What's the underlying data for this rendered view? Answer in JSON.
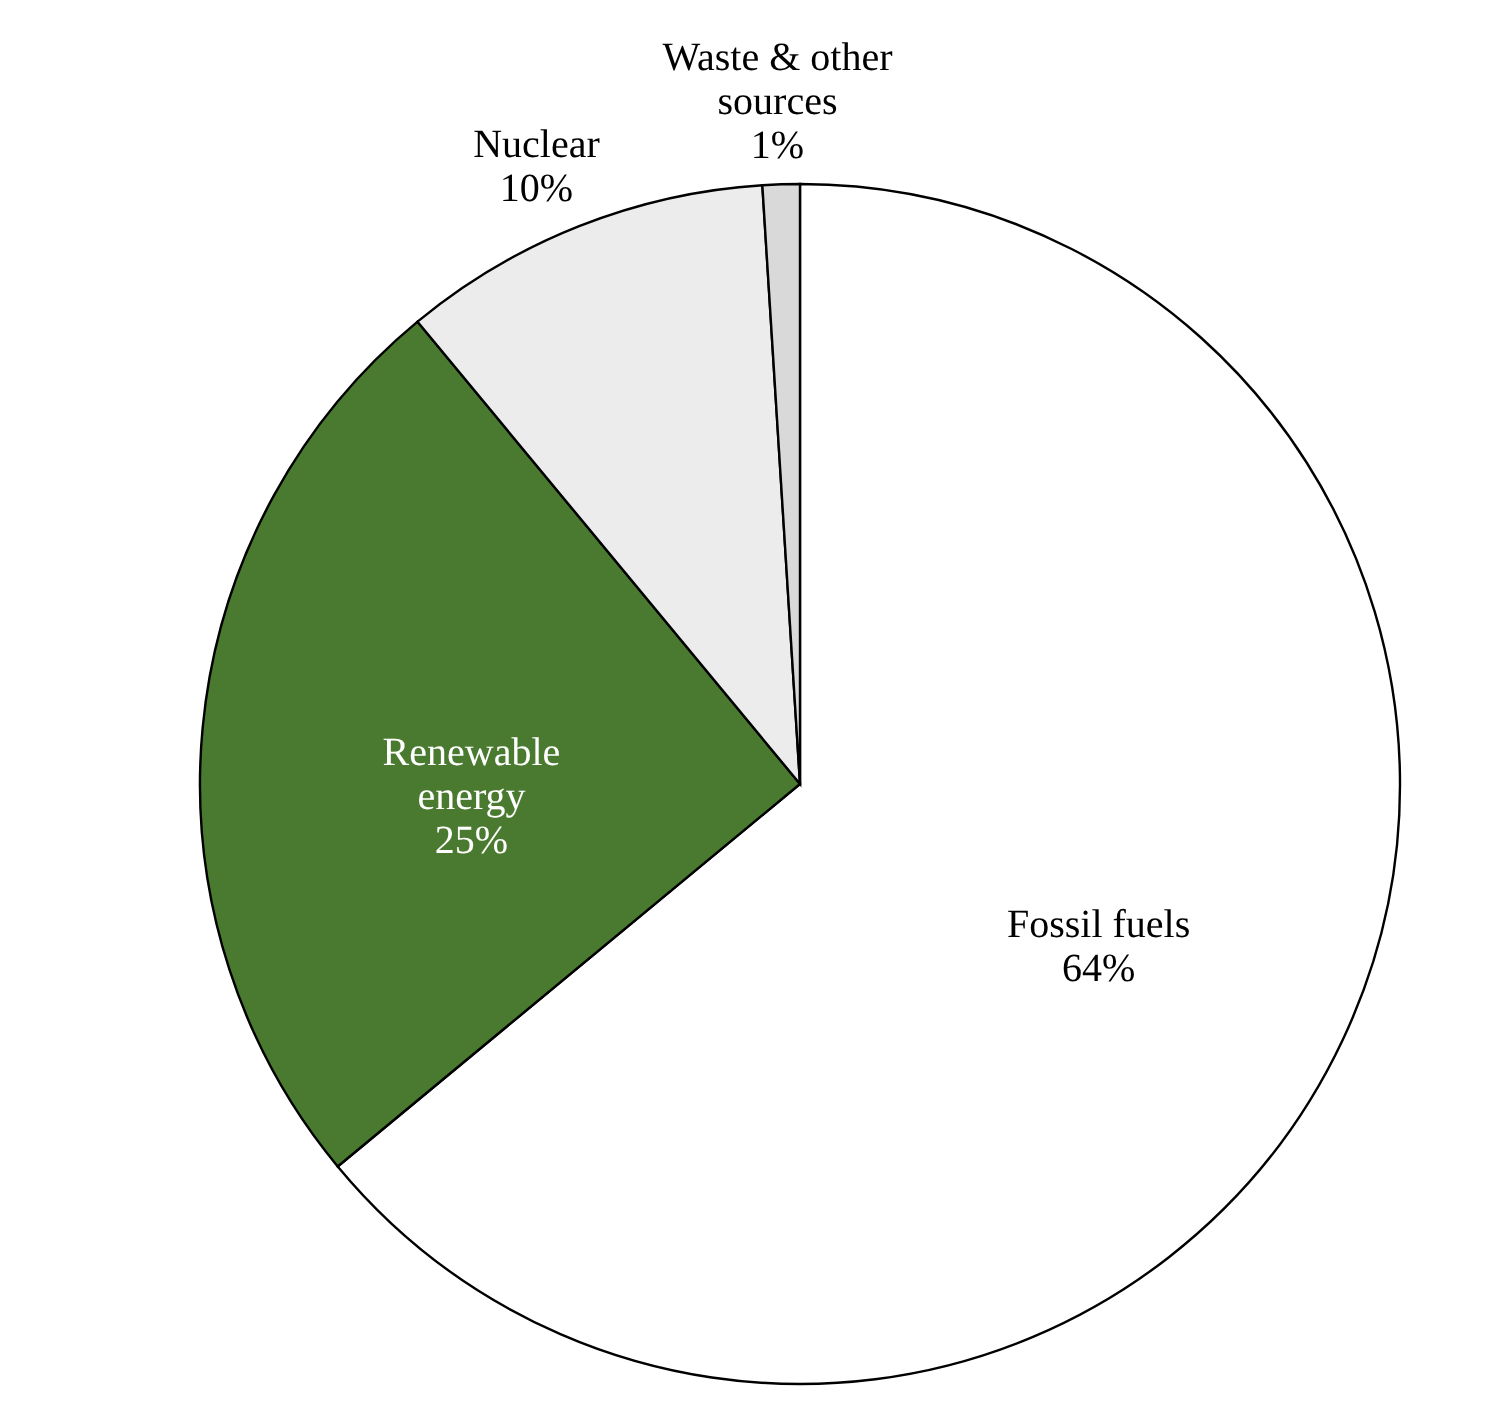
{
  "chart_data": {
    "type": "pie",
    "categories": [
      "Fossil fuels",
      "Renewable energy",
      "Nuclear",
      "Waste & other sources"
    ],
    "values": [
      64,
      25,
      10,
      1
    ],
    "colors": [
      "#ffffff",
      "#4a7a2f",
      "#ececec",
      "#d9d9d9"
    ],
    "value_labels": [
      "64%",
      "25%",
      "10%",
      "1%"
    ]
  }
}
